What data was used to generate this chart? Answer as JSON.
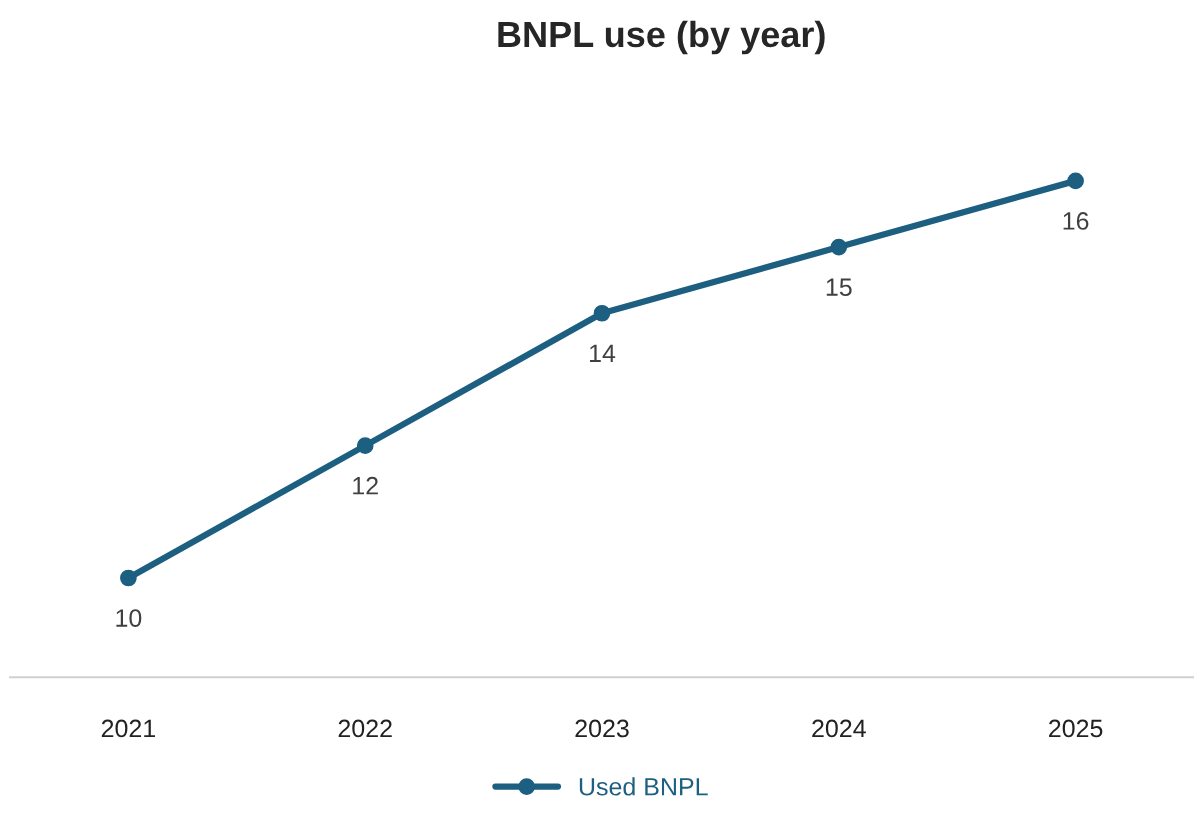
{
  "chart_data": {
    "type": "line",
    "title": "BNPL use (by year)",
    "categories": [
      "2021",
      "2022",
      "2023",
      "2024",
      "2025"
    ],
    "series": [
      {
        "name": "Used BNPL",
        "color": "#1d5f80",
        "values": [
          10,
          12,
          14,
          15,
          16
        ]
      }
    ],
    "tick_labels": "x",
    "data_labels": true,
    "legend": "bottom",
    "marker": "circle",
    "line_style": "solid",
    "grid": false
  }
}
